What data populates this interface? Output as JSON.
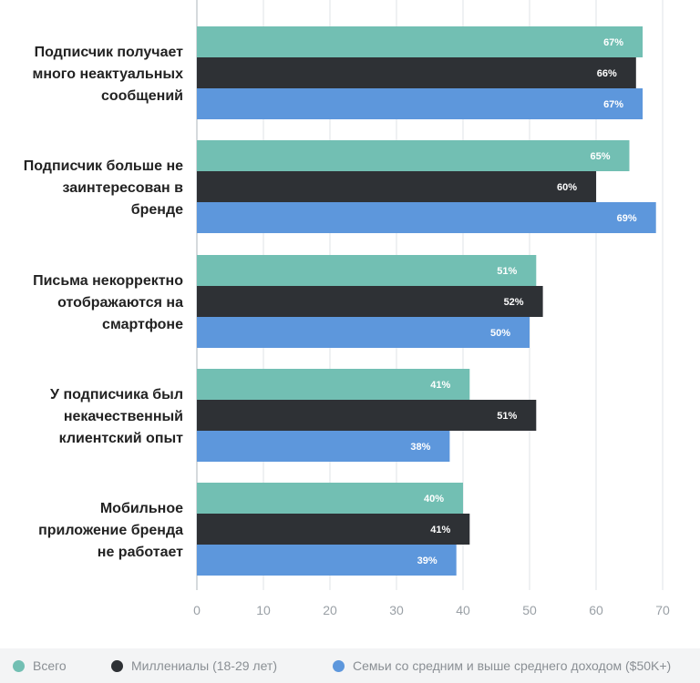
{
  "chart_data": {
    "type": "bar",
    "orientation": "horizontal",
    "title": "",
    "xlabel": "",
    "ylabel": "",
    "categories": [
      [
        "Подписчик получает",
        "много неактуальных",
        "сообщений"
      ],
      [
        "Подписчик больше не",
        "заинтересован в",
        "бренде"
      ],
      [
        "Письма некорректно",
        "отображаются на",
        "смартфоне"
      ],
      [
        "У подписчика был",
        "некачественный",
        "клиентский опыт"
      ],
      [
        "Мобильное",
        "приложение бренда",
        "не работает"
      ]
    ],
    "series": [
      {
        "name": "Всего",
        "color": "#72bfb3",
        "values": [
          67,
          65,
          51,
          41,
          40
        ],
        "labels": [
          "67%",
          "65%",
          "51%",
          "41%",
          "40%"
        ]
      },
      {
        "name": "Миллениалы (18-29 лет)",
        "color": "#2e3135",
        "values": [
          66,
          60,
          52,
          51,
          41
        ],
        "labels": [
          "66%",
          "60%",
          "52%",
          "51%",
          "41%"
        ]
      },
      {
        "name": "Семьи со средним и выше среднего доходом ($50K+)",
        "color": "#5d97dc",
        "values": [
          67,
          69,
          50,
          38,
          39
        ],
        "labels": [
          "67%",
          "69%",
          "50%",
          "38%",
          "39%"
        ]
      }
    ],
    "x_ticks": [
      "0",
      "10",
      "20",
      "30",
      "40",
      "50",
      "60",
      "70"
    ],
    "xlim": [
      0,
      70
    ],
    "grid": true,
    "legend_position": "bottom"
  }
}
